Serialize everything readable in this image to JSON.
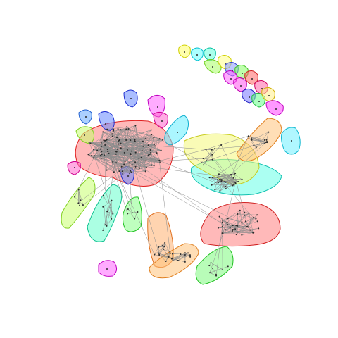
{
  "figure": {
    "background": "#ffffff",
    "edge_color": "#8c8c8c",
    "node_color": "#2b2b2b"
  },
  "communities": [
    {
      "id": "big-core",
      "fill": "#ff7f7f",
      "stroke": "#e02020"
    },
    {
      "id": "right-red",
      "fill": "#ff7f7f",
      "stroke": "#d02020"
    },
    {
      "id": "mid-cyan",
      "fill": "#66ffe8",
      "stroke": "#10c0b0"
    },
    {
      "id": "mid-yellow",
      "fill": "#f4f77a",
      "stroke": "#c8cc20"
    },
    {
      "id": "orange-right",
      "fill": "#ffc27a",
      "stroke": "#e08020"
    },
    {
      "id": "cyan-far-right",
      "fill": "#6ff0ff",
      "stroke": "#10b8d0"
    },
    {
      "id": "orange-bottom-tall",
      "fill": "#ffb070",
      "stroke": "#e07020"
    },
    {
      "id": "orange-bottom-flat",
      "fill": "#ffc27a",
      "stroke": "#e08020"
    },
    {
      "id": "green-bottom",
      "fill": "#7dfa7d",
      "stroke": "#20c020"
    },
    {
      "id": "magenta-bottom",
      "fill": "#ff66ff",
      "stroke": "#c000c0"
    },
    {
      "id": "lime-left",
      "fill": "#c8ff70",
      "stroke": "#80d020"
    },
    {
      "id": "teal-left",
      "fill": "#66ffcc",
      "stroke": "#10c090"
    },
    {
      "id": "green-left-small",
      "fill": "#88ff88",
      "stroke": "#20c020"
    },
    {
      "id": "pink-left",
      "fill": "#ff66cc",
      "stroke": "#d00090"
    },
    {
      "id": "blue-top-1",
      "fill": "#6688ff",
      "stroke": "#2030d0"
    },
    {
      "id": "blue-top-2",
      "fill": "#6688ff",
      "stroke": "#2030d0"
    },
    {
      "id": "blue-top-3",
      "fill": "#66aaff",
      "stroke": "#2060d0"
    },
    {
      "id": "magenta-top",
      "fill": "#ff66ff",
      "stroke": "#c000c0"
    },
    {
      "id": "pink-top",
      "fill": "#ff66cc",
      "stroke": "#d00090"
    },
    {
      "id": "cyan-top",
      "fill": "#66eeff",
      "stroke": "#10b0d0"
    },
    {
      "id": "lime-top",
      "fill": "#c8ff70",
      "stroke": "#80d020"
    },
    {
      "id": "blue-mid",
      "fill": "#6688ff",
      "stroke": "#2030d0"
    },
    {
      "id": "iso-yellow-1",
      "fill": "#ffff66",
      "stroke": "#d0d000"
    },
    {
      "id": "iso-cyan-1",
      "fill": "#66ffff",
      "stroke": "#00c0d0"
    },
    {
      "id": "iso-cyan-2",
      "fill": "#66ffdd",
      "stroke": "#00c0a0"
    },
    {
      "id": "iso-lime-1",
      "fill": "#aaff66",
      "stroke": "#70d020"
    },
    {
      "id": "iso-yellow-2",
      "fill": "#ffff88",
      "stroke": "#d0d000"
    },
    {
      "id": "iso-blue-1",
      "fill": "#8899ff",
      "stroke": "#3040d0"
    },
    {
      "id": "iso-green-1",
      "fill": "#88ff66",
      "stroke": "#40c020"
    },
    {
      "id": "iso-magenta-1",
      "fill": "#ff66ff",
      "stroke": "#c000c0"
    },
    {
      "id": "iso-magenta-2",
      "fill": "#ff55ee",
      "stroke": "#c000b0"
    },
    {
      "id": "iso-red-1",
      "fill": "#ff6666",
      "stroke": "#d02020"
    },
    {
      "id": "iso-pink-1",
      "fill": "#ff66aa",
      "stroke": "#d00060"
    },
    {
      "id": "iso-blue-2",
      "fill": "#7777ff",
      "stroke": "#2020c0"
    },
    {
      "id": "iso-green-2",
      "fill": "#66ff88",
      "stroke": "#20c040"
    },
    {
      "id": "iso-yellow-3",
      "fill": "#ffee88",
      "stroke": "#d0b000"
    },
    {
      "id": "iso-magenta-3",
      "fill": "#ff44ff",
      "stroke": "#c000c0"
    }
  ]
}
